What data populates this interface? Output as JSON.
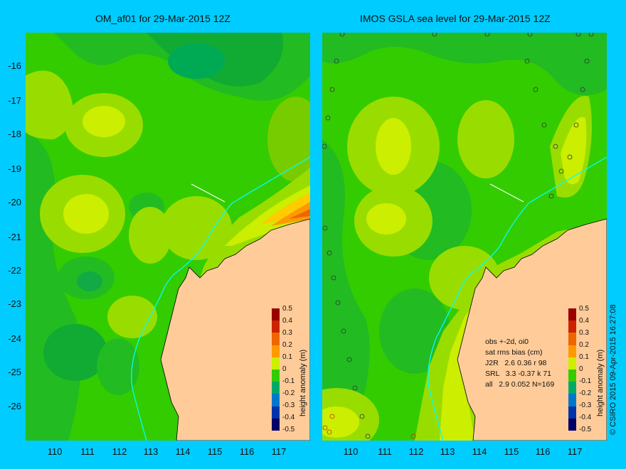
{
  "panels": [
    {
      "title": "OM_af01 for 29-Mar-2015 12Z"
    },
    {
      "title": "IMOS GSLA sea level  for 29-Mar-2015 12Z"
    }
  ],
  "axes": {
    "lat_ticks": [
      "-16",
      "-17",
      "-18",
      "-19",
      "-20",
      "-21",
      "-22",
      "-23",
      "-24",
      "-25",
      "-26"
    ],
    "lon_ticks": [
      "110",
      "111",
      "112",
      "113",
      "114",
      "115",
      "116",
      "117"
    ]
  },
  "colorbar": {
    "label": "height anomaly (m)",
    "ticks": [
      "0.5",
      "0.4",
      "0.3",
      "0.2",
      "0.1",
      "0",
      "-0.1",
      "-0.2",
      "-0.3",
      "-0.4",
      "-0.5"
    ],
    "colors": [
      "#990000",
      "#cc2200",
      "#ee6600",
      "#ff9900",
      "#ffcc00",
      "#ccee00",
      "#33cc00",
      "#00aa66",
      "#0077cc",
      "#0033aa",
      "#000066"
    ]
  },
  "stats": {
    "line1": "obs +-2d, oi0",
    "line2": "sat rms bias (cm)",
    "line3": "J2R   2.6 0.36 r 98",
    "line4": "SRL   3.3 -0.37 k 71",
    "line5": "all   2.9 0.052 N=169"
  },
  "credit": "© CSIRO 2015   09-Apr-2015 16:27:08",
  "colors": {
    "land": "#ffcc99",
    "background": "#00ccff",
    "sea": "#33cc00",
    "coast": "#00ffff"
  }
}
